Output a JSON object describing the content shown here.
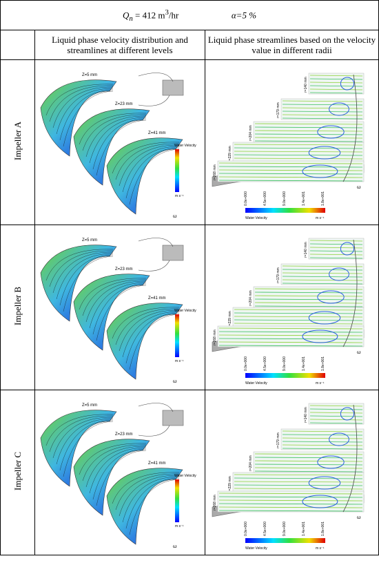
{
  "header": {
    "flow_symbol": "Q",
    "flow_subscript": "n",
    "flow_value": "= 412 m",
    "flow_unit_power": "3",
    "flow_unit_rest": "/hr",
    "alpha": "α=5 %"
  },
  "columns": [
    "Liquid phase velocity distribution and streamlines at different levels",
    "Liquid phase streamlines based on the velocity value in different radii"
  ],
  "rows": [
    {
      "label": "Impeller A",
      "levels": [
        "Z=5 mm",
        "Z=23 mm",
        "Z=41 mm"
      ],
      "radii": [
        "r=140 mm",
        "r=179 mm",
        "r=204 mm",
        "r=229 mm",
        "r=268 mm"
      ],
      "colorbar_title": "Water Velocity",
      "colorbar_ticks": [
        "0.0e+000",
        "4.5e+000",
        "9.0e+000",
        "1.4e+001",
        "1.8e+001"
      ],
      "unit": "m s⁻¹",
      "rotation": "ω"
    },
    {
      "label": "Impeller B",
      "levels": [
        "Z=5 mm",
        "Z=23 mm",
        "Z=41 mm"
      ],
      "radii": [
        "r=140 mm",
        "r=179 mm",
        "r=204 mm",
        "r=229 mm",
        "r=268 mm"
      ],
      "colorbar_title": "Water Velocity",
      "colorbar_ticks": [
        "0.0e+000",
        "4.5e+000",
        "9.0e+000",
        "1.4e+001",
        "1.8e+001"
      ],
      "unit": "m s⁻¹",
      "rotation": "ω"
    },
    {
      "label": "Impeller C",
      "levels": [
        "Z=5 mm",
        "Z=23 mm",
        "Z=41 mm"
      ],
      "radii": [
        "r=140 mm",
        "r=179 mm",
        "r=204 mm",
        "r=229 mm",
        "r=268 mm"
      ],
      "colorbar_title": "Water Velocity",
      "colorbar_ticks": [
        "0.0e+000",
        "4.5e+000",
        "9.0e+000",
        "1.4e+001",
        "1.8e+001"
      ],
      "unit": "m s⁻¹",
      "rotation": "ω"
    }
  ]
}
